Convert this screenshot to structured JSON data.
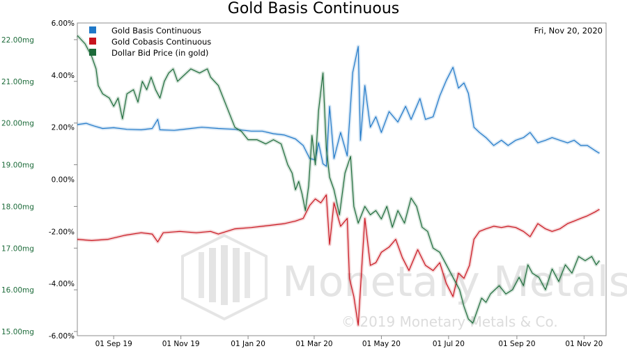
{
  "chart_data": {
    "type": "line",
    "title": "Gold Basis Continuous",
    "date_label": "Fri, Nov 20, 2020",
    "watermark": {
      "brand": "Monetary Metals",
      "copyright": "© 2019 Monetary Metals & Co."
    },
    "x_ticks": [
      "01 Sep 19",
      "01 Nov 19",
      "01 Jan 20",
      "01 Mar 20",
      "01 May 20",
      "01 Jul 20",
      "01 Sep 20",
      "01 Nov 20"
    ],
    "x_tick_days": [
      0,
      61,
      122,
      182,
      243,
      304,
      366,
      427
    ],
    "x_range_days": [
      -33,
      447
    ],
    "y_left": {
      "label_unit": "mg",
      "range": [
        14.9,
        22.4
      ],
      "ticks": [
        "22.00mg",
        "21.00mg",
        "20.00mg",
        "19.00mg",
        "18.00mg",
        "17.00mg",
        "16.00mg",
        "15.00mg"
      ],
      "tick_values": [
        22,
        21,
        20,
        19,
        18,
        17,
        16,
        15
      ]
    },
    "y_right": {
      "range": [
        -6.0,
        6.0
      ],
      "ticks": [
        "6.00%",
        "4.00%",
        "2.00%",
        "0.00%",
        "-2.00%",
        "-4.00%",
        "-6.00%"
      ],
      "tick_values": [
        6,
        4,
        2,
        0,
        -2,
        -4,
        -6
      ]
    },
    "legend": [
      {
        "name": "Gold Basis Continuous",
        "color": "#1f78c8"
      },
      {
        "name": "Gold Cobasis Continuous",
        "color": "#c8141e"
      },
      {
        "name": "Dollar Bid Price (in gold)",
        "color": "#1d6b3a"
      }
    ],
    "series": [
      {
        "name": "Gold Basis Continuous",
        "axis": "right",
        "color": "#1f78c8",
        "points": [
          [
            -33,
            2.1
          ],
          [
            -25,
            2.15
          ],
          [
            -18,
            2.05
          ],
          [
            -10,
            1.95
          ],
          [
            0,
            1.98
          ],
          [
            12,
            1.92
          ],
          [
            25,
            1.9
          ],
          [
            35,
            1.95
          ],
          [
            40,
            2.3
          ],
          [
            42,
            1.9
          ],
          [
            55,
            1.88
          ],
          [
            70,
            1.95
          ],
          [
            80,
            2.0
          ],
          [
            95,
            1.95
          ],
          [
            110,
            1.92
          ],
          [
            125,
            1.85
          ],
          [
            135,
            1.85
          ],
          [
            145,
            1.75
          ],
          [
            155,
            1.7
          ],
          [
            165,
            1.55
          ],
          [
            172,
            1.3
          ],
          [
            178,
            0.8
          ],
          [
            183,
            0.75
          ],
          [
            186,
            1.4
          ],
          [
            190,
            0.6
          ],
          [
            193,
            0.5
          ],
          [
            196,
            2.8
          ],
          [
            200,
            0.8
          ],
          [
            206,
            1.8
          ],
          [
            212,
            0.9
          ],
          [
            217,
            4.1
          ],
          [
            222,
            5.1
          ],
          [
            224,
            1.5
          ],
          [
            228,
            3.6
          ],
          [
            233,
            2.0
          ],
          [
            238,
            2.4
          ],
          [
            243,
            1.8
          ],
          [
            250,
            2.6
          ],
          [
            258,
            2.2
          ],
          [
            265,
            2.8
          ],
          [
            270,
            2.3
          ],
          [
            278,
            3.1
          ],
          [
            283,
            2.3
          ],
          [
            290,
            2.4
          ],
          [
            296,
            3.2
          ],
          [
            302,
            3.8
          ],
          [
            308,
            4.3
          ],
          [
            313,
            3.5
          ],
          [
            318,
            3.7
          ],
          [
            322,
            3.3
          ],
          [
            327,
            2.0
          ],
          [
            332,
            1.8
          ],
          [
            338,
            1.6
          ],
          [
            345,
            1.3
          ],
          [
            352,
            1.5
          ],
          [
            358,
            1.3
          ],
          [
            365,
            1.5
          ],
          [
            372,
            1.6
          ],
          [
            378,
            1.8
          ],
          [
            385,
            1.4
          ],
          [
            392,
            1.5
          ],
          [
            398,
            1.6
          ],
          [
            405,
            1.5
          ],
          [
            412,
            1.4
          ],
          [
            418,
            1.5
          ],
          [
            424,
            1.3
          ],
          [
            430,
            1.3
          ],
          [
            437,
            1.1
          ],
          [
            441,
            1.0
          ]
        ]
      },
      {
        "name": "Gold Cobasis Continuous",
        "axis": "right",
        "color": "#c8141e",
        "points": [
          [
            -33,
            -2.3
          ],
          [
            -20,
            -2.35
          ],
          [
            -5,
            -2.3
          ],
          [
            10,
            -2.15
          ],
          [
            25,
            -2.05
          ],
          [
            35,
            -2.1
          ],
          [
            40,
            -2.4
          ],
          [
            45,
            -2.05
          ],
          [
            60,
            -2.0
          ],
          [
            75,
            -2.05
          ],
          [
            88,
            -2.0
          ],
          [
            95,
            -2.1
          ],
          [
            110,
            -1.9
          ],
          [
            125,
            -1.85
          ],
          [
            135,
            -1.8
          ],
          [
            145,
            -1.75
          ],
          [
            155,
            -1.7
          ],
          [
            165,
            -1.6
          ],
          [
            172,
            -1.5
          ],
          [
            178,
            -1.0
          ],
          [
            183,
            -0.75
          ],
          [
            188,
            -0.9
          ],
          [
            193,
            -0.6
          ],
          [
            196,
            -2.5
          ],
          [
            200,
            -0.9
          ],
          [
            206,
            -1.8
          ],
          [
            212,
            -1.5
          ],
          [
            214,
            -3.8
          ],
          [
            218,
            -4.5
          ],
          [
            222,
            -5.6
          ],
          [
            225,
            -3.5
          ],
          [
            228,
            -1.5
          ],
          [
            233,
            -3.3
          ],
          [
            238,
            -3.2
          ],
          [
            243,
            -2.8
          ],
          [
            250,
            -2.6
          ],
          [
            256,
            -2.3
          ],
          [
            262,
            -3.0
          ],
          [
            268,
            -3.5
          ],
          [
            276,
            -2.7
          ],
          [
            283,
            -3.3
          ],
          [
            290,
            -3.5
          ],
          [
            296,
            -3.2
          ],
          [
            302,
            -4.0
          ],
          [
            308,
            -4.5
          ],
          [
            313,
            -3.6
          ],
          [
            318,
            -3.8
          ],
          [
            323,
            -3.3
          ],
          [
            327,
            -2.3
          ],
          [
            332,
            -2.0
          ],
          [
            338,
            -1.9
          ],
          [
            345,
            -1.8
          ],
          [
            352,
            -1.85
          ],
          [
            358,
            -1.8
          ],
          [
            365,
            -1.85
          ],
          [
            372,
            -2.0
          ],
          [
            378,
            -2.2
          ],
          [
            385,
            -1.7
          ],
          [
            392,
            -1.9
          ],
          [
            398,
            -2.0
          ],
          [
            405,
            -1.9
          ],
          [
            412,
            -1.7
          ],
          [
            418,
            -1.6
          ],
          [
            424,
            -1.5
          ],
          [
            430,
            -1.4
          ],
          [
            437,
            -1.25
          ],
          [
            441,
            -1.15
          ]
        ]
      },
      {
        "name": "Dollar Bid Price (in gold)",
        "axis": "left",
        "color": "#1d6b3a",
        "points": [
          [
            -33,
            22.1
          ],
          [
            -26,
            21.9
          ],
          [
            -20,
            21.6
          ],
          [
            -16,
            21.3
          ],
          [
            -14,
            20.9
          ],
          [
            -10,
            20.7
          ],
          [
            -4,
            20.6
          ],
          [
            0,
            20.4
          ],
          [
            4,
            20.6
          ],
          [
            8,
            20.1
          ],
          [
            12,
            20.7
          ],
          [
            18,
            20.8
          ],
          [
            22,
            20.5
          ],
          [
            26,
            21.0
          ],
          [
            30,
            20.8
          ],
          [
            34,
            21.1
          ],
          [
            38,
            20.8
          ],
          [
            42,
            20.6
          ],
          [
            46,
            21.0
          ],
          [
            50,
            21.2
          ],
          [
            54,
            21.3
          ],
          [
            58,
            21.0
          ],
          [
            62,
            21.1
          ],
          [
            70,
            21.3
          ],
          [
            78,
            21.2
          ],
          [
            85,
            21.3
          ],
          [
            88,
            21.1
          ],
          [
            95,
            20.9
          ],
          [
            104,
            20.3
          ],
          [
            110,
            19.9
          ],
          [
            116,
            19.8
          ],
          [
            122,
            19.6
          ],
          [
            130,
            19.6
          ],
          [
            138,
            19.5
          ],
          [
            145,
            19.6
          ],
          [
            152,
            19.5
          ],
          [
            158,
            19.0
          ],
          [
            162,
            18.8
          ],
          [
            165,
            18.4
          ],
          [
            168,
            18.6
          ],
          [
            171,
            18.3
          ],
          [
            174,
            17.9
          ],
          [
            177,
            18.5
          ],
          [
            180,
            19.7
          ],
          [
            183,
            19.0
          ],
          [
            186,
            20.3
          ],
          [
            190,
            21.2
          ],
          [
            193,
            19.4
          ],
          [
            196,
            18.7
          ],
          [
            200,
            18.4
          ],
          [
            205,
            17.8
          ],
          [
            210,
            18.8
          ],
          [
            215,
            19.2
          ],
          [
            218,
            18.0
          ],
          [
            222,
            17.6
          ],
          [
            228,
            18.0
          ],
          [
            233,
            17.8
          ],
          [
            238,
            17.9
          ],
          [
            243,
            17.7
          ],
          [
            248,
            18.0
          ],
          [
            253,
            17.5
          ],
          [
            258,
            17.9
          ],
          [
            264,
            17.6
          ],
          [
            270,
            18.2
          ],
          [
            275,
            18.0
          ],
          [
            280,
            17.5
          ],
          [
            285,
            17.4
          ],
          [
            290,
            17.0
          ],
          [
            296,
            16.9
          ],
          [
            302,
            16.6
          ],
          [
            308,
            16.3
          ],
          [
            314,
            16.0
          ],
          [
            318,
            15.6
          ],
          [
            322,
            15.3
          ],
          [
            326,
            15.2
          ],
          [
            330,
            15.5
          ],
          [
            334,
            15.8
          ],
          [
            338,
            15.7
          ],
          [
            342,
            15.9
          ],
          [
            346,
            16.0
          ],
          [
            350,
            16.1
          ],
          [
            356,
            15.9
          ],
          [
            362,
            16.0
          ],
          [
            368,
            16.3
          ],
          [
            372,
            16.1
          ],
          [
            376,
            16.6
          ],
          [
            380,
            16.4
          ],
          [
            386,
            16.3
          ],
          [
            392,
            16.0
          ],
          [
            398,
            16.5
          ],
          [
            404,
            16.2
          ],
          [
            410,
            16.6
          ],
          [
            416,
            16.4
          ],
          [
            422,
            16.8
          ],
          [
            428,
            16.7
          ],
          [
            434,
            16.8
          ],
          [
            438,
            16.6
          ],
          [
            441,
            16.7
          ]
        ]
      }
    ]
  }
}
